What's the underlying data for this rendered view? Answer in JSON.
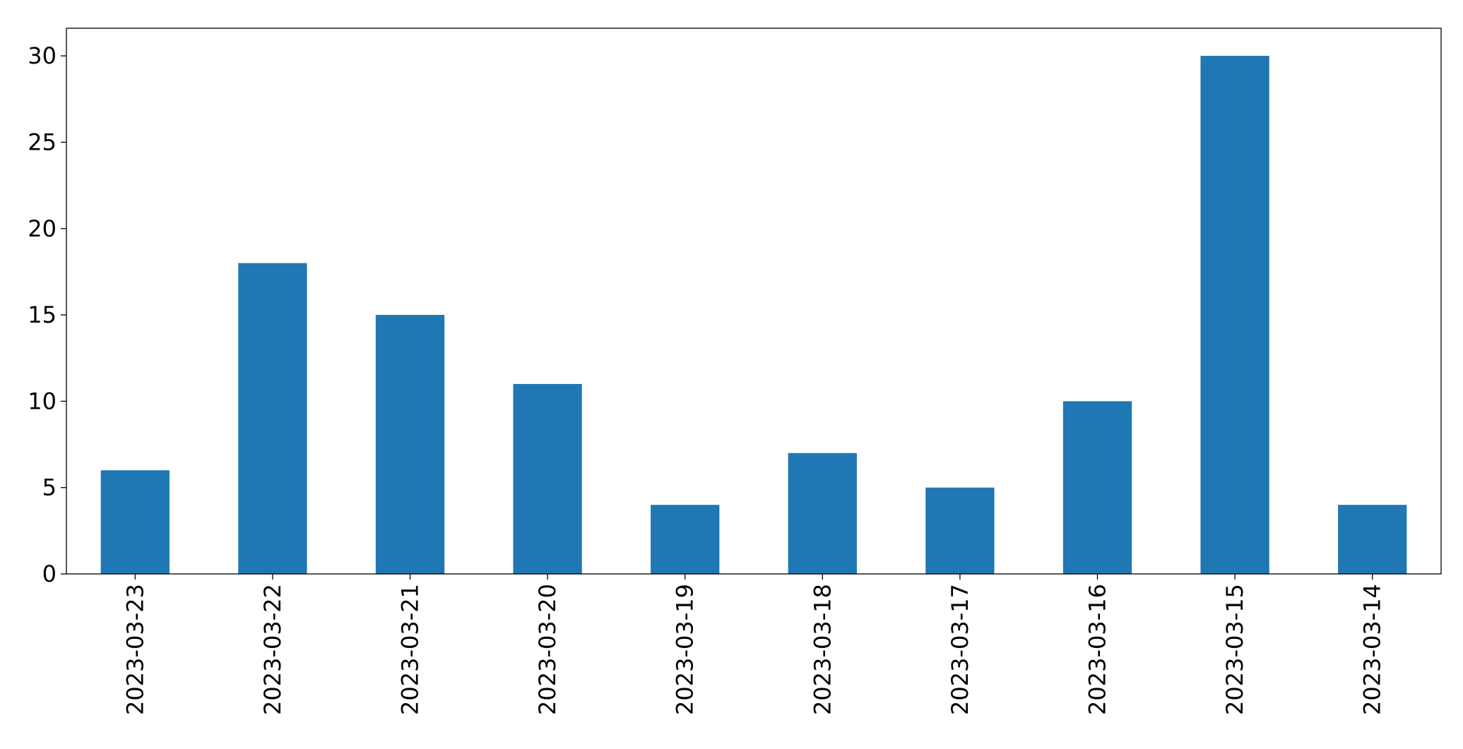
{
  "chart_data": {
    "type": "bar",
    "title": "",
    "xlabel": "",
    "ylabel": "",
    "categories": [
      "2023-03-23",
      "2023-03-22",
      "2023-03-21",
      "2023-03-20",
      "2023-03-19",
      "2023-03-18",
      "2023-03-17",
      "2023-03-16",
      "2023-03-15",
      "2023-03-14"
    ],
    "values": [
      6,
      18,
      15,
      11,
      4,
      7,
      5,
      10,
      30,
      4
    ],
    "ylim": [
      0,
      31.6
    ],
    "yticks": [
      0,
      5,
      10,
      15,
      20,
      25,
      30
    ],
    "ytick_labels": [
      "0",
      "5",
      "10",
      "15",
      "20",
      "25",
      "30"
    ],
    "grid": false,
    "legend": "none",
    "x_tick_rotation": "vertical",
    "colors": {
      "bar": "#1f77b4",
      "axis": "#000000",
      "background": "#ffffff"
    }
  }
}
